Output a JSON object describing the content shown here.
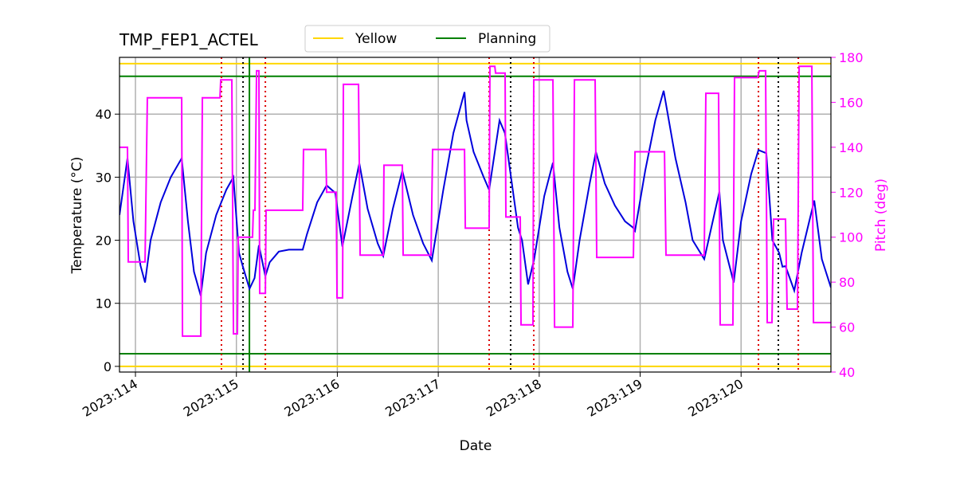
{
  "chart_data": {
    "type": "line",
    "title": "TMP_FEP1_ACTEL",
    "xlabel": "Date",
    "ylabel": "Temperature (°C)",
    "y2label": "Pitch (deg)",
    "y2color": "#ff00ff",
    "xlim": [
      113.842,
      120.89
    ],
    "ylim": [
      -0.9,
      49
    ],
    "y2lim": [
      40,
      180
    ],
    "xticks": [
      {
        "value": 114,
        "label": "2023:114"
      },
      {
        "value": 115,
        "label": "2023:115"
      },
      {
        "value": 116,
        "label": "2023:116"
      },
      {
        "value": 117,
        "label": "2023:117"
      },
      {
        "value": 118,
        "label": "2023:118"
      },
      {
        "value": 119,
        "label": "2023:119"
      },
      {
        "value": 120,
        "label": "2023:120"
      }
    ],
    "yticks": [
      0,
      10,
      20,
      30,
      40
    ],
    "y2ticks": [
      40,
      60,
      80,
      100,
      120,
      140,
      160,
      180
    ],
    "grid": true,
    "legend": "top",
    "hlines": [
      {
        "name": "Yellow",
        "color": "#ffd700",
        "values": [
          0,
          48
        ]
      },
      {
        "name": "Planning",
        "color": "#008000",
        "values": [
          2,
          46
        ]
      }
    ],
    "vlines": [
      {
        "color": "#dd0000",
        "style": "dotted",
        "values": [
          114.852,
          115.287,
          117.504,
          117.946,
          120.172,
          120.567
        ]
      },
      {
        "color": "#000000",
        "style": "dotted",
        "values": [
          115.066,
          117.717,
          120.369
        ]
      },
      {
        "color": "#008000",
        "style": "solid",
        "values": [
          115.129
        ]
      }
    ],
    "series": [
      {
        "color": "#0000dd",
        "axis": "y",
        "x": [
          113.842,
          113.921,
          113.98,
          114.05,
          114.095,
          114.15,
          114.25,
          114.35,
          114.458,
          114.52,
          114.58,
          114.647,
          114.7,
          114.8,
          114.9,
          114.97,
          115.026,
          115.07,
          115.13,
          115.18,
          115.223,
          115.287,
          115.33,
          115.42,
          115.52,
          115.657,
          115.7,
          115.8,
          115.894,
          115.98,
          116.05,
          116.15,
          116.218,
          116.3,
          116.4,
          116.455,
          116.55,
          116.644,
          116.75,
          116.85,
          116.936,
          117.05,
          117.15,
          117.26,
          117.28,
          117.35,
          117.45,
          117.504,
          117.607,
          117.66,
          117.79,
          117.83,
          117.89,
          117.95,
          118.05,
          118.136,
          118.2,
          118.28,
          118.333,
          118.4,
          118.5,
          118.562,
          118.65,
          118.75,
          118.85,
          118.93,
          118.949,
          119.05,
          119.15,
          119.233,
          119.35,
          119.45,
          119.52,
          119.635,
          119.785,
          119.82,
          119.927,
          120.0,
          120.1,
          120.172,
          120.25,
          120.31,
          120.377,
          120.41,
          120.44,
          120.527,
          120.6,
          120.725,
          120.8,
          120.89
        ],
        "values": [
          24,
          33,
          23,
          16,
          13.3,
          20,
          26,
          30,
          33,
          23,
          15,
          11.2,
          18,
          24,
          28,
          30,
          18,
          15.5,
          12.3,
          14,
          19.2,
          14.3,
          16.5,
          18.2,
          18.5,
          18.5,
          21,
          26,
          28.7,
          27.5,
          19,
          27,
          32.2,
          25,
          19.5,
          17.5,
          25,
          31,
          24,
          19.5,
          16.8,
          28,
          37,
          43.5,
          39,
          34,
          30,
          28,
          39,
          37,
          22,
          20,
          13,
          17,
          27,
          32.3,
          22,
          15,
          12.3,
          20,
          29,
          34,
          29,
          25.5,
          23,
          22,
          21.5,
          31,
          39,
          43.7,
          33,
          26,
          20,
          17,
          27.7,
          20,
          13.3,
          23,
          30.5,
          34.3,
          33.8,
          20,
          18,
          15.8,
          15.9,
          12,
          18,
          26.3,
          17,
          12.5
        ]
      },
      {
        "color": "#ff00ff",
        "axis": "y2",
        "x": [
          113.842,
          113.921,
          113.929,
          114.095,
          114.118,
          114.458,
          114.466,
          114.647,
          114.663,
          114.837,
          114.845,
          114.955,
          114.971,
          115.01,
          115.018,
          115.16,
          115.168,
          115.184,
          115.2,
          115.223,
          115.231,
          115.287,
          115.294,
          115.657,
          115.665,
          115.886,
          115.894,
          115.989,
          115.997,
          116.052,
          116.06,
          116.21,
          116.226,
          116.455,
          116.462,
          116.644,
          116.652,
          116.928,
          116.944,
          117.26,
          117.268,
          117.504,
          117.512,
          117.56,
          117.568,
          117.662,
          117.67,
          117.812,
          117.82,
          117.938,
          117.946,
          118.136,
          118.152,
          118.333,
          118.349,
          118.554,
          118.57,
          118.933,
          118.949,
          119.241,
          119.256,
          119.635,
          119.651,
          119.777,
          119.793,
          119.919,
          119.935,
          120.164,
          120.18,
          120.243,
          120.259,
          120.306,
          120.322,
          120.44,
          120.456,
          120.559,
          120.575,
          120.701,
          120.717,
          120.89
        ],
        "values": [
          140,
          140,
          89,
          89,
          162,
          162,
          56,
          56,
          162,
          162,
          170,
          170,
          57,
          57,
          100,
          100,
          112,
          112,
          174,
          174,
          75,
          75,
          112,
          112,
          139,
          139,
          120,
          120,
          73,
          73,
          168,
          168,
          92,
          92,
          132,
          132,
          92,
          92,
          139,
          139,
          104,
          104,
          176,
          176,
          173,
          173,
          109,
          109,
          61,
          61,
          170,
          170,
          60,
          60,
          170,
          170,
          91,
          91,
          138,
          138,
          92,
          92,
          164,
          164,
          61,
          61,
          171,
          171,
          174,
          174,
          62,
          62,
          108,
          108,
          68,
          68,
          176,
          176,
          62,
          62
        ]
      }
    ]
  }
}
